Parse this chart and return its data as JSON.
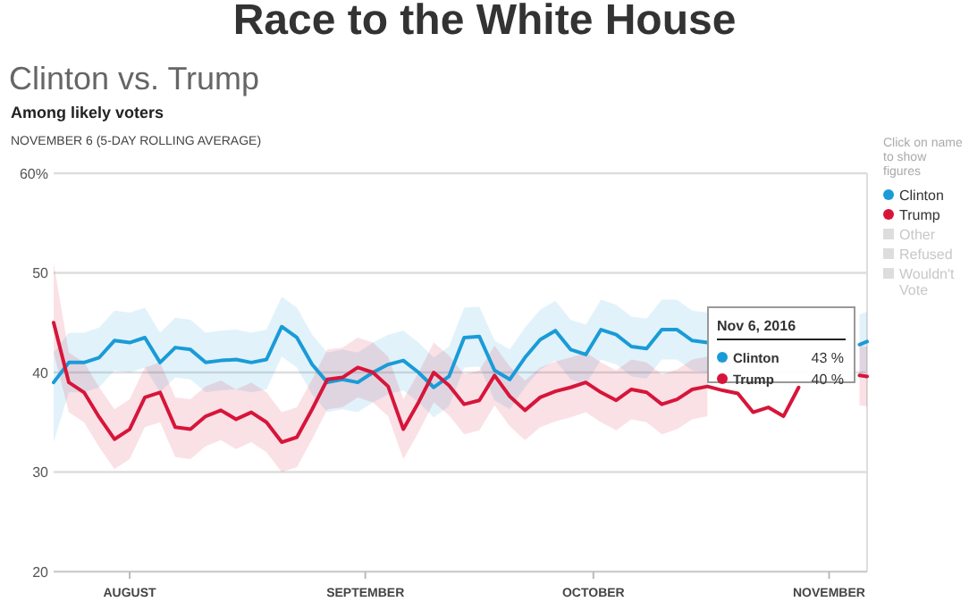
{
  "chart_data": {
    "type": "line",
    "title": "Race to the White House",
    "subtitle": "Clinton vs. Trump",
    "annotations": [
      "Among likely voters",
      "NOVEMBER 6 (5-DAY ROLLING AVERAGE)",
      "Click on name to show figures",
      "Nov 6, 2016",
      "Clinton",
      "43 %",
      "Trump",
      "40 %"
    ],
    "x": [
      "2016-07-22",
      "2016-07-24",
      "2016-07-26",
      "2016-07-28",
      "2016-07-30",
      "2016-08-01",
      "2016-08-03",
      "2016-08-05",
      "2016-08-07",
      "2016-08-09",
      "2016-08-11",
      "2016-08-13",
      "2016-08-15",
      "2016-08-17",
      "2016-08-19",
      "2016-08-21",
      "2016-08-23",
      "2016-08-25",
      "2016-08-27",
      "2016-08-29",
      "2016-08-31",
      "2016-09-02",
      "2016-09-04",
      "2016-09-06",
      "2016-09-08",
      "2016-09-10",
      "2016-09-12",
      "2016-09-14",
      "2016-09-16",
      "2016-09-18",
      "2016-09-20",
      "2016-09-22",
      "2016-09-24",
      "2016-09-26",
      "2016-09-28",
      "2016-09-30",
      "2016-10-02",
      "2016-10-04",
      "2016-10-06",
      "2016-10-08",
      "2016-10-10",
      "2016-10-12",
      "2016-10-14",
      "2016-10-16",
      "2016-10-18",
      "2016-10-20",
      "2016-10-22",
      "2016-10-24",
      "2016-10-26",
      "2016-10-28",
      "2016-10-30",
      "2016-11-01",
      "2016-11-03",
      "2016-11-05",
      "2016-11-06"
    ],
    "series": [
      {
        "name": "Clinton",
        "color": "#1a9bd7",
        "values": [
          39.0,
          41.0,
          41.0,
          41.5,
          43.2,
          43.0,
          43.5,
          41.0,
          42.5,
          42.3,
          41.0,
          41.2,
          41.3,
          41.0,
          41.3,
          44.6,
          43.5,
          40.8,
          39.0,
          39.3,
          39.0,
          40.0,
          40.8,
          41.2,
          40.0,
          38.5,
          39.6,
          43.5,
          43.6,
          40.2,
          39.3,
          41.5,
          43.3,
          44.2,
          42.3,
          41.8,
          44.3,
          43.8,
          42.6,
          42.4,
          44.3,
          44.3,
          43.2,
          43.0,
          null,
          null,
          null,
          null,
          null,
          null,
          null,
          null,
          null,
          42.8,
          43.1
        ],
        "lower": [
          33.0,
          38.0,
          38.0,
          38.5,
          40.2,
          40.0,
          40.5,
          38.0,
          39.5,
          39.3,
          38.0,
          38.2,
          38.3,
          38.0,
          38.3,
          41.6,
          40.5,
          37.8,
          36.0,
          36.3,
          36.0,
          37.0,
          37.8,
          38.2,
          37.0,
          35.5,
          36.6,
          40.5,
          40.6,
          37.2,
          36.3,
          38.5,
          40.3,
          41.2,
          39.3,
          38.8,
          41.3,
          40.8,
          39.6,
          39.4,
          41.3,
          41.3,
          40.2,
          40.0,
          null,
          null,
          null,
          null,
          null,
          null,
          null,
          null,
          null,
          39.8,
          40.1
        ],
        "upper": [
          42.0,
          44.0,
          44.0,
          44.5,
          46.2,
          46.0,
          46.5,
          44.0,
          45.5,
          45.3,
          44.0,
          44.2,
          44.3,
          44.0,
          44.3,
          47.6,
          46.5,
          43.8,
          42.0,
          42.3,
          42.0,
          43.0,
          43.8,
          44.2,
          43.0,
          41.5,
          42.6,
          46.5,
          46.6,
          43.2,
          42.3,
          44.5,
          46.3,
          47.2,
          45.3,
          44.8,
          47.3,
          46.8,
          45.6,
          45.4,
          47.3,
          47.3,
          46.2,
          46.0,
          null,
          null,
          null,
          null,
          null,
          null,
          null,
          null,
          null,
          45.8,
          46.1
        ]
      },
      {
        "name": "Trump",
        "color": "#d7153a",
        "values": [
          45.0,
          39.0,
          38.0,
          35.5,
          33.3,
          34.3,
          37.5,
          38.0,
          34.5,
          34.3,
          35.6,
          36.2,
          35.3,
          36.0,
          35.0,
          33.0,
          33.5,
          36.3,
          39.3,
          39.5,
          40.5,
          40.0,
          38.6,
          34.3,
          37.0,
          40.0,
          38.7,
          36.8,
          37.2,
          39.7,
          37.6,
          36.2,
          37.5,
          38.1,
          38.5,
          39.0,
          38.0,
          37.2,
          38.3,
          38.0,
          36.8,
          37.3,
          38.3,
          38.6,
          38.2,
          37.9,
          36.0,
          36.5,
          35.6,
          38.5,
          null,
          null,
          null,
          39.7,
          39.6
        ],
        "lower": [
          42.0,
          36.0,
          35.0,
          32.5,
          30.3,
          31.3,
          34.5,
          35.0,
          31.5,
          31.3,
          32.6,
          33.2,
          32.3,
          33.0,
          32.0,
          30.0,
          30.5,
          33.3,
          36.3,
          36.5,
          37.5,
          37.0,
          35.6,
          31.3,
          34.0,
          37.0,
          35.7,
          33.8,
          34.2,
          36.7,
          34.6,
          33.2,
          34.5,
          35.1,
          35.5,
          36.0,
          35.0,
          34.2,
          35.3,
          35.0,
          33.8,
          34.3,
          35.3,
          35.6,
          null,
          null,
          null,
          null,
          null,
          null,
          null,
          null,
          null,
          36.7,
          36.6
        ],
        "upper": [
          51.0,
          42.0,
          41.0,
          38.5,
          36.3,
          37.3,
          40.5,
          41.0,
          37.5,
          37.3,
          38.6,
          39.2,
          38.3,
          39.0,
          38.0,
          36.0,
          36.5,
          39.3,
          42.3,
          42.5,
          43.5,
          43.0,
          41.6,
          37.3,
          40.0,
          43.0,
          41.7,
          39.8,
          40.2,
          42.7,
          40.6,
          39.2,
          40.5,
          41.1,
          41.5,
          42.0,
          41.0,
          40.2,
          41.3,
          41.0,
          39.8,
          40.3,
          41.3,
          41.6,
          null,
          null,
          null,
          null,
          null,
          null,
          null,
          null,
          null,
          42.7,
          42.6
        ]
      },
      {
        "name": "Other",
        "color": "#dddddd",
        "values": [
          null,
          null,
          null,
          null,
          null,
          null,
          null,
          null,
          null,
          null,
          null,
          null,
          null,
          null,
          null,
          null,
          null,
          null,
          null,
          null,
          null,
          null,
          null,
          null,
          null,
          null,
          null,
          null,
          null,
          null,
          null,
          null,
          null,
          null,
          null,
          null,
          null,
          null,
          null,
          null,
          null,
          null,
          null,
          null,
          null,
          null,
          null,
          null,
          null,
          null,
          null,
          null,
          null,
          null,
          null
        ]
      },
      {
        "name": "Refused",
        "color": "#dddddd",
        "values": [
          null,
          null,
          null,
          null,
          null,
          null,
          null,
          null,
          null,
          null,
          null,
          null,
          null,
          null,
          null,
          null,
          null,
          null,
          null,
          null,
          null,
          null,
          null,
          null,
          null,
          null,
          null,
          null,
          null,
          null,
          null,
          null,
          null,
          null,
          null,
          null,
          null,
          null,
          null,
          null,
          null,
          null,
          null,
          null,
          null,
          null,
          null,
          null,
          null,
          null,
          null,
          null,
          null,
          null,
          null
        ]
      },
      {
        "name": "Wouldn't Vote",
        "color": "#dddddd",
        "values": [
          null,
          null,
          null,
          null,
          null,
          null,
          null,
          null,
          null,
          null,
          null,
          null,
          null,
          null,
          null,
          null,
          null,
          null,
          null,
          null,
          null,
          null,
          null,
          null,
          null,
          null,
          null,
          null,
          null,
          null,
          null,
          null,
          null,
          null,
          null,
          null,
          null,
          null,
          null,
          null,
          null,
          null,
          null,
          null,
          null,
          null,
          null,
          null,
          null,
          null,
          null,
          null,
          null,
          null,
          null
        ]
      }
    ],
    "xlim": [
      "2016-07-22",
      "2016-11-06"
    ],
    "xticks": [
      {
        "value": "2016-08-01",
        "label": "AUGUST"
      },
      {
        "value": "2016-09-01",
        "label": "SEPTEMBER"
      },
      {
        "value": "2016-10-01",
        "label": "OCTOBER"
      },
      {
        "value": "2016-11-01",
        "label": "NOVEMBER"
      }
    ],
    "ylim": [
      20,
      60
    ],
    "yticks": [
      20,
      30,
      40,
      50,
      {
        "value": 60,
        "label": "60%"
      }
    ],
    "grid": "y",
    "legend": "right",
    "line_style": "solid"
  }
}
